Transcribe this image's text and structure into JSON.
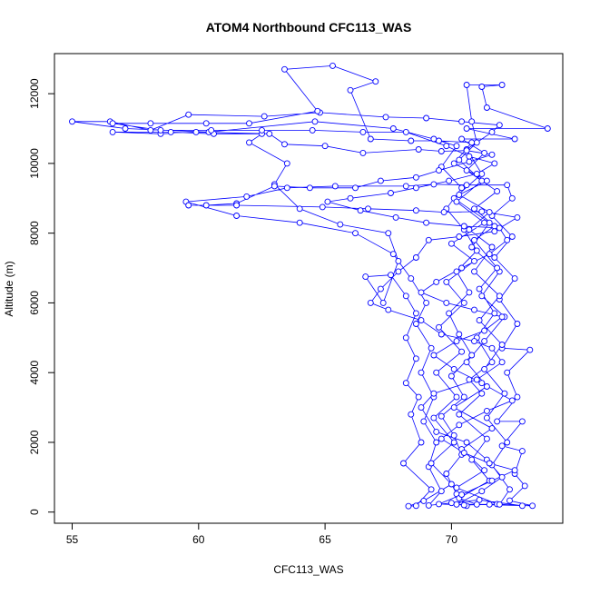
{
  "chart_data": {
    "type": "scatter",
    "title": "ATOM4 Northbound CFC113_WAS",
    "xlabel": "CFC113_WAS",
    "ylabel": "Altitude (m)",
    "xlim": [
      54.3,
      74.4
    ],
    "ylim": [
      -320,
      13150
    ],
    "x_ticks": [
      55,
      60,
      65,
      70
    ],
    "y_ticks": [
      0,
      2000,
      4000,
      6000,
      8000,
      10000,
      12000
    ],
    "grid": false,
    "legend": "none",
    "marker": "open-circle",
    "connected": true,
    "series": [
      {
        "color": "#0000ff",
        "points": [
          [
            70.6,
            180
          ],
          [
            70.2,
            520
          ],
          [
            69.8,
            1100
          ],
          [
            70.4,
            1650
          ],
          [
            70.1,
            2200
          ],
          [
            69.6,
            2750
          ],
          [
            70.5,
            3300
          ],
          [
            70.0,
            3900
          ],
          [
            70.8,
            4500
          ],
          [
            70.3,
            5100
          ],
          [
            69.9,
            5700
          ],
          [
            70.7,
            6300
          ],
          [
            70.2,
            6900
          ],
          [
            71.0,
            7500
          ],
          [
            70.5,
            8100
          ],
          [
            69.8,
            8700
          ],
          [
            70.4,
            9300
          ],
          [
            69.6,
            9900
          ],
          [
            70.2,
            10500
          ],
          [
            69.3,
            10700
          ],
          [
            67.7,
            11000
          ],
          [
            64.6,
            11200
          ],
          [
            60.4,
            10900
          ],
          [
            57.1,
            11000
          ],
          [
            55.0,
            11200
          ],
          [
            56.5,
            11200
          ],
          [
            58.1,
            10950
          ],
          [
            59.6,
            11400
          ],
          [
            62.6,
            11350
          ],
          [
            64.8,
            11460
          ],
          [
            67.4,
            11330
          ],
          [
            69.0,
            11300
          ],
          [
            70.4,
            11200
          ],
          [
            71.9,
            11100
          ],
          [
            71.6,
            10900
          ],
          [
            70.6,
            10400
          ],
          [
            71.2,
            9700
          ],
          [
            70.1,
            9000
          ],
          [
            71.5,
            8300
          ],
          [
            70.8,
            7600
          ],
          [
            71.9,
            6900
          ],
          [
            71.2,
            6200
          ],
          [
            72.1,
            5600
          ],
          [
            71.3,
            4900
          ],
          [
            70.6,
            4300
          ],
          [
            71.4,
            3600
          ],
          [
            70.1,
            3000
          ],
          [
            71.6,
            2400
          ],
          [
            70.4,
            1800
          ],
          [
            71.3,
            1200
          ],
          [
            70.2,
            700
          ],
          [
            71.8,
            230
          ],
          [
            72.8,
            180
          ],
          [
            71.1,
            350
          ],
          [
            70.0,
            260
          ],
          [
            69.1,
            190
          ],
          [
            69.6,
            600
          ],
          [
            69.1,
            1300
          ],
          [
            69.4,
            2000
          ],
          [
            68.9,
            2600
          ],
          [
            69.3,
            3300
          ],
          [
            68.8,
            4000
          ],
          [
            69.2,
            4700
          ],
          [
            68.6,
            5400
          ],
          [
            69.0,
            6000
          ],
          [
            68.4,
            6700
          ],
          [
            67.7,
            7400
          ],
          [
            66.2,
            8000
          ],
          [
            64.0,
            8300
          ],
          [
            61.5,
            8500
          ],
          [
            59.5,
            8900
          ],
          [
            61.9,
            9050
          ],
          [
            63.5,
            9300
          ],
          [
            65.4,
            9350
          ],
          [
            68.2,
            9350
          ],
          [
            69.3,
            9400
          ],
          [
            70.6,
            9380
          ],
          [
            72.2,
            9380
          ],
          [
            72.4,
            9000
          ],
          [
            71.6,
            8500
          ],
          [
            72.4,
            7900
          ],
          [
            71.7,
            7300
          ],
          [
            72.5,
            6700
          ],
          [
            71.9,
            6100
          ],
          [
            72.6,
            5400
          ],
          [
            72.0,
            4700
          ],
          [
            73.1,
            4650
          ],
          [
            72.2,
            4000
          ],
          [
            72.6,
            3300
          ],
          [
            71.8,
            2600
          ],
          [
            72.8,
            2600
          ],
          [
            72.0,
            1900
          ],
          [
            72.8,
            1750
          ],
          [
            72.5,
            1100
          ],
          [
            72.9,
            750
          ],
          [
            72.3,
            330
          ],
          [
            73.2,
            180
          ],
          [
            71.0,
            220
          ],
          [
            70.3,
            400
          ],
          [
            71.5,
            900
          ],
          [
            70.8,
            1500
          ],
          [
            71.4,
            2100
          ],
          [
            70.3,
            2800
          ],
          [
            71.2,
            3400
          ],
          [
            70.7,
            3800
          ],
          [
            71.6,
            4300
          ],
          [
            71.0,
            5000
          ],
          [
            71.7,
            5700
          ],
          [
            71.1,
            6400
          ],
          [
            71.8,
            7000
          ],
          [
            70.9,
            7800
          ],
          [
            71.7,
            8200
          ],
          [
            70.9,
            8700
          ],
          [
            71.8,
            9200
          ],
          [
            70.6,
            9800
          ],
          [
            71.3,
            10300
          ],
          [
            70.4,
            10700
          ],
          [
            72.5,
            10700
          ],
          [
            70.6,
            11000
          ],
          [
            73.8,
            11000
          ],
          [
            71.4,
            11600
          ],
          [
            71.2,
            12200
          ],
          [
            72.0,
            12250
          ],
          [
            70.6,
            12250
          ],
          [
            70.8,
            11200
          ],
          [
            71.0,
            10600
          ],
          [
            70.3,
            10100
          ],
          [
            71.2,
            9500
          ],
          [
            70.2,
            8900
          ],
          [
            71.3,
            8300
          ],
          [
            70.0,
            7700
          ],
          [
            70.9,
            7200
          ],
          [
            69.8,
            6600
          ],
          [
            70.5,
            6000
          ],
          [
            69.5,
            5300
          ],
          [
            70.4,
            4600
          ],
          [
            69.4,
            4000
          ],
          [
            70.2,
            3300
          ],
          [
            69.3,
            2700
          ],
          [
            70.1,
            2000
          ],
          [
            69.2,
            1400
          ],
          [
            70.0,
            800
          ],
          [
            68.9,
            320
          ],
          [
            68.3,
            170
          ],
          [
            68.6,
            180
          ],
          [
            69.2,
            650
          ],
          [
            68.1,
            1400
          ],
          [
            68.8,
            2000
          ],
          [
            68.4,
            2800
          ],
          [
            68.7,
            3300
          ],
          [
            68.2,
            3700
          ],
          [
            68.6,
            4400
          ],
          [
            68.2,
            5000
          ],
          [
            68.6,
            5700
          ],
          [
            68.2,
            6200
          ],
          [
            67.6,
            6800
          ],
          [
            66.6,
            6750
          ],
          [
            67.3,
            6000
          ],
          [
            67.9,
            7200
          ],
          [
            67.5,
            8000
          ],
          [
            65.6,
            8250
          ],
          [
            64.0,
            8700
          ],
          [
            63.0,
            9400
          ],
          [
            63.5,
            10000
          ],
          [
            62.0,
            10600
          ],
          [
            62.5,
            10850
          ],
          [
            60.6,
            10850
          ],
          [
            58.9,
            10900
          ],
          [
            56.6,
            10900
          ],
          [
            58.5,
            10850
          ],
          [
            59.9,
            10900
          ],
          [
            62.8,
            10850
          ],
          [
            63.4,
            10550
          ],
          [
            65.0,
            10500
          ],
          [
            66.5,
            10300
          ],
          [
            68.7,
            10400
          ],
          [
            69.6,
            10350
          ],
          [
            70.6,
            10370
          ],
          [
            71.6,
            10250
          ],
          [
            70.7,
            10050
          ],
          [
            69.5,
            9800
          ],
          [
            68.6,
            9600
          ],
          [
            67.2,
            9500
          ],
          [
            66.2,
            9300
          ],
          [
            64.4,
            9300
          ],
          [
            63.0,
            9350
          ],
          [
            61.5,
            8850
          ],
          [
            60.3,
            8800
          ],
          [
            59.6,
            8800
          ],
          [
            61.5,
            8800
          ],
          [
            64.9,
            8750
          ],
          [
            66.7,
            8700
          ],
          [
            68.6,
            8650
          ],
          [
            69.7,
            8600
          ],
          [
            71.2,
            8620
          ],
          [
            72.6,
            8450
          ],
          [
            71.7,
            8050
          ],
          [
            70.3,
            7900
          ],
          [
            69.1,
            7800
          ],
          [
            68.6,
            7300
          ],
          [
            67.9,
            6900
          ],
          [
            67.2,
            6400
          ],
          [
            66.8,
            6000
          ],
          [
            67.5,
            5800
          ],
          [
            68.8,
            5500
          ],
          [
            69.6,
            5100
          ],
          [
            70.9,
            4900
          ],
          [
            71.6,
            4700
          ],
          [
            72.0,
            4300
          ],
          [
            71.0,
            3800
          ],
          [
            69.3,
            3400
          ],
          [
            68.8,
            3000
          ],
          [
            69.4,
            2300
          ],
          [
            70.6,
            2000
          ],
          [
            71.4,
            1500
          ],
          [
            72.0,
            1000
          ],
          [
            71.2,
            600
          ],
          [
            70.2,
            220
          ],
          [
            71.9,
            220
          ],
          [
            72.3,
            650
          ],
          [
            71.6,
            1350
          ],
          [
            72.2,
            2000
          ],
          [
            71.4,
            2700
          ],
          [
            72.1,
            3400
          ],
          [
            71.3,
            4100
          ],
          [
            72.0,
            4800
          ],
          [
            71.1,
            5500
          ],
          [
            71.9,
            6200
          ],
          [
            70.9,
            6900
          ],
          [
            71.6,
            7600
          ],
          [
            70.7,
            8100
          ],
          [
            71.5,
            8600
          ],
          [
            70.3,
            9100
          ],
          [
            71.4,
            9500
          ],
          [
            70.1,
            10000
          ],
          [
            70.8,
            10600
          ],
          [
            69.5,
            10650
          ],
          [
            68.4,
            10650
          ],
          [
            66.8,
            10700
          ],
          [
            66.0,
            12100
          ],
          [
            67.0,
            12350
          ],
          [
            65.3,
            12800
          ],
          [
            63.4,
            12700
          ],
          [
            64.7,
            11500
          ],
          [
            62.0,
            11150
          ],
          [
            60.3,
            11150
          ],
          [
            58.1,
            11150
          ],
          [
            56.6,
            11150
          ],
          [
            58.5,
            10950
          ],
          [
            60.5,
            10950
          ],
          [
            62.5,
            10950
          ],
          [
            64.5,
            10950
          ],
          [
            66.5,
            10900
          ],
          [
            68.2,
            10900
          ],
          [
            69.8,
            10500
          ],
          [
            70.7,
            10200
          ],
          [
            71.7,
            10000
          ],
          [
            71.0,
            9700
          ],
          [
            69.9,
            9500
          ],
          [
            68.6,
            9300
          ],
          [
            67.6,
            9150
          ],
          [
            66.0,
            9000
          ],
          [
            65.1,
            8900
          ],
          [
            66.4,
            8650
          ],
          [
            67.8,
            8450
          ],
          [
            69.0,
            8300
          ],
          [
            70.5,
            8200
          ],
          [
            71.9,
            8150
          ],
          [
            72.2,
            7800
          ],
          [
            71.5,
            7400
          ],
          [
            70.4,
            7000
          ],
          [
            69.4,
            6600
          ],
          [
            68.8,
            6300
          ],
          [
            69.8,
            6000
          ],
          [
            70.9,
            5800
          ],
          [
            72.0,
            5600
          ],
          [
            71.3,
            5200
          ],
          [
            70.2,
            4900
          ],
          [
            69.3,
            4500
          ],
          [
            70.1,
            4100
          ],
          [
            71.2,
            3700
          ],
          [
            72.4,
            3200
          ],
          [
            71.4,
            2900
          ],
          [
            70.3,
            2500
          ],
          [
            69.6,
            2100
          ],
          [
            70.5,
            1700
          ],
          [
            71.5,
            1400
          ],
          [
            72.5,
            1200
          ],
          [
            71.6,
            900
          ],
          [
            70.4,
            500
          ],
          [
            69.5,
            230
          ],
          [
            70.5,
            200
          ],
          [
            71.5,
            220
          ]
        ]
      }
    ]
  }
}
